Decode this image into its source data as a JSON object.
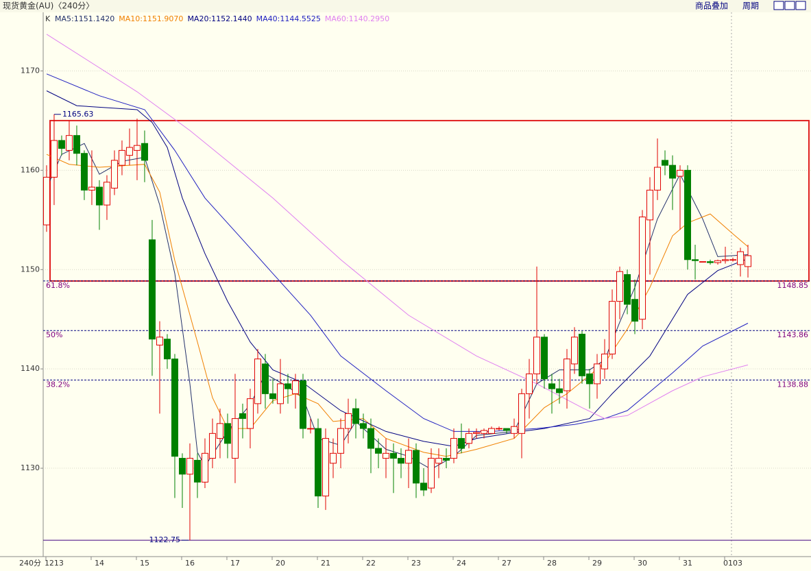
{
  "header": {
    "title": "现货黄金(AU)〈240分〉",
    "buttons": [
      "商品叠加",
      "周期"
    ]
  },
  "chart_data": {
    "type": "candlestick",
    "ohlc_label": "K",
    "period_label": "240分",
    "up_color": "#e00000",
    "down_color": "#008000",
    "xlim": [
      -0.45,
      101.36
    ],
    "ylim": [
      1121.1,
      1175.9
    ],
    "yticks": [
      1130,
      1140,
      1150,
      1160,
      1170
    ],
    "grid": true,
    "xticks": [
      {
        "value": 1,
        "label": "1213"
      },
      {
        "value": 7,
        "label": "14"
      },
      {
        "value": 13,
        "label": "15"
      },
      {
        "value": 19,
        "label": "16"
      },
      {
        "value": 25,
        "label": "17"
      },
      {
        "value": 31,
        "label": "20"
      },
      {
        "value": 37,
        "label": "21"
      },
      {
        "value": 43,
        "label": "22"
      },
      {
        "value": 49,
        "label": "23"
      },
      {
        "value": 55,
        "label": "24"
      },
      {
        "value": 61,
        "label": "27"
      },
      {
        "value": 67,
        "label": "28"
      },
      {
        "value": 73,
        "label": "29"
      },
      {
        "value": 79,
        "label": "30"
      },
      {
        "value": 85,
        "label": "31"
      },
      {
        "value": 91,
        "label": "0103"
      }
    ],
    "open": [
      1154.5,
      1159.3,
      1163,
      1162,
      1163.5,
      1161.7,
      1158,
      1158.3,
      1156.5,
      1158.2,
      1160.5,
      1161.5,
      1162,
      1162.7,
      1153,
      1142.4,
      1143,
      1141,
      1131,
      1129.4,
      1130.8,
      1128.6,
      1131,
      1133,
      1134.5,
      1131,
      1135.5,
      1134,
      1136.5,
      1140.5,
      1137.5,
      1136.5,
      1138.5,
      1137.5,
      1138.8,
      1134,
      1134,
      1127.2,
      1130.5,
      1131.5,
      1134,
      1136,
      1134.5,
      1134,
      1132,
      1131,
      1131.5,
      1131,
      1130.5,
      1131.8,
      1128.5,
      1128,
      1130.5,
      1131,
      1131,
      1133,
      1132.5,
      1133.5,
      1133.5,
      1133.5,
      1134,
      1134,
      1133.5,
      1133.5,
      1137.5,
      1139.5,
      1143.2,
      1138.5,
      1138,
      1137.8,
      1140.5,
      1143.5,
      1139.5,
      1138.5,
      1140,
      1141.5,
      1146.8,
      1149.5,
      1147,
      1145,
      1155,
      1158,
      1161,
      1160.5,
      1159.4,
      1160,
      1151,
      1150.8,
      1150.8,
      1150.7,
      1150.9,
      1151,
      1150.5,
      1150.3
    ],
    "high": [
      1160.5,
      1165.63,
      1163.5,
      1165,
      1164.5,
      1162,
      1162,
      1159,
      1159.5,
      1162,
      1163,
      1164.2,
      1165.2,
      1164,
      1155,
      1144.8,
      1143.5,
      1141.5,
      1131.5,
      1132.5,
      1131.5,
      1133,
      1135,
      1136,
      1135.5,
      1139.5,
      1136.5,
      1138,
      1142,
      1141.5,
      1139,
      1141,
      1139.5,
      1139.5,
      1139.5,
      1135,
      1135,
      1134,
      1133,
      1135,
      1137,
      1137,
      1135.5,
      1135,
      1133,
      1133,
      1132.5,
      1132,
      1133,
      1132.5,
      1130,
      1132,
      1132,
      1132,
      1134,
      1134.5,
      1134,
      1134,
      1134,
      1134.2,
      1134.2,
      1134,
      1135,
      1138,
      1141,
      1150.3,
      1143.5,
      1139.5,
      1139,
      1142,
      1144.2,
      1143.8,
      1140,
      1141.5,
      1143,
      1148,
      1150.3,
      1150,
      1149,
      1156,
      1159.3,
      1163.2,
      1162,
      1161.5,
      1160.5,
      1160.5,
      1152.5,
      1150.8,
      1151,
      1151,
      1152.3,
      1151.2,
      1152.2,
      1152.5
    ],
    "low": [
      1153.8,
      1156.5,
      1161.5,
      1161,
      1160.5,
      1157,
      1156.5,
      1154,
      1155,
      1157.5,
      1159.5,
      1160.5,
      1159,
      1158.8,
      1139.3,
      1135.5,
      1140,
      1127,
      1126,
      1122.75,
      1127,
      1128,
      1130,
      1131,
      1131,
      1128.5,
      1133,
      1132,
      1135.5,
      1136,
      1136.5,
      1135.5,
      1136.5,
      1136,
      1133,
      1133.5,
      1126,
      1125.8,
      1129,
      1130,
      1132.5,
      1133,
      1133,
      1129.5,
      1130,
      1129,
      1127.5,
      1129,
      1128,
      1127,
      1127.2,
      1127.5,
      1129,
      1130,
      1130.5,
      1131.5,
      1132,
      1133,
      1133,
      1133.5,
      1133.8,
      1133.5,
      1133,
      1131,
      1135,
      1138.5,
      1138,
      1135.5,
      1136.5,
      1136,
      1139.5,
      1138.5,
      1136,
      1137,
      1139,
      1141,
      1145,
      1145.5,
      1143.5,
      1144,
      1149.5,
      1157,
      1159.5,
      1156,
      1154,
      1150,
      1149,
      1150.8,
      1150.5,
      1150.5,
      1150.6,
      1150.8,
      1149.3,
      1149.2
    ],
    "close": [
      1159.3,
      1163,
      1162.2,
      1163.5,
      1161.7,
      1158,
      1158.3,
      1156.5,
      1158.8,
      1161,
      1162,
      1162.3,
      1162.5,
      1161,
      1143,
      1143.2,
      1141,
      1131.2,
      1129.4,
      1131,
      1128.6,
      1131.5,
      1133.5,
      1134.5,
      1132.5,
      1135,
      1135,
      1137,
      1141,
      1137.5,
      1137,
      1138.5,
      1138,
      1138.8,
      1134,
      1134,
      1127.2,
      1133,
      1131.5,
      1134,
      1135.5,
      1134.5,
      1134,
      1132,
      1131.5,
      1131.5,
      1131,
      1130.5,
      1131.8,
      1128.5,
      1127.8,
      1131,
      1131,
      1130.8,
      1133,
      1132,
      1133.5,
      1133.6,
      1133.8,
      1134,
      1134,
      1133.8,
      1134.2,
      1137.5,
      1139.5,
      1143.2,
      1139,
      1138,
      1137.6,
      1141,
      1143.2,
      1139.3,
      1138.5,
      1140.5,
      1141.5,
      1146.8,
      1149.8,
      1146.5,
      1144.8,
      1155.3,
      1158,
      1160.3,
      1160.5,
      1159.2,
      1160,
      1151,
      1150.9,
      1150.8,
      1150.7,
      1150.9,
      1151,
      1151,
      1151.8,
      1151.4
    ],
    "series": [
      {
        "name": "MA5:1151.1420",
        "color": "#22306a",
        "x": [
          0,
          2,
          5,
          7,
          10,
          13,
          15,
          17,
          19,
          20,
          21,
          24,
          27,
          29,
          32,
          34,
          36,
          39,
          41,
          45,
          48,
          51,
          54,
          57,
          62,
          65,
          68,
          72,
          74,
          76,
          78,
          81,
          84,
          87,
          89,
          93
        ],
        "values": [
          1158.2,
          1161.6,
          1162.7,
          1159.6,
          1160.9,
          1161.3,
          1156.5,
          1149.6,
          1138.5,
          1131.6,
          1130.2,
          1133.7,
          1136.4,
          1139.5,
          1138.2,
          1137.1,
          1133,
          1132.3,
          1134.7,
          1131.9,
          1131.2,
          1129.9,
          1131.2,
          1133.3,
          1133.7,
          1138.5,
          1139.9,
          1139.9,
          1140.9,
          1144.7,
          1148.2,
          1155.1,
          1159.6,
          1155.1,
          1151.3,
          1151.5
        ]
      },
      {
        "name": "MA10:1151.9070",
        "color": "#f08000",
        "x": [
          0,
          3,
          7,
          13,
          15,
          17,
          20,
          22,
          24,
          27,
          30,
          33,
          36,
          38,
          42,
          45,
          50,
          53,
          57,
          62,
          66,
          69,
          74,
          77,
          80,
          83,
          85,
          88,
          91,
          93
        ],
        "values": [
          1161.6,
          1160.6,
          1160.3,
          1160.6,
          1157.8,
          1150.9,
          1142.7,
          1137.1,
          1134,
          1134,
          1136.8,
          1137.5,
          1136.5,
          1134.7,
          1135,
          1133,
          1131.6,
          1131.2,
          1131.9,
          1133,
          1136.1,
          1137.5,
          1140.6,
          1144,
          1148.2,
          1153.4,
          1154.7,
          1155.6,
          1153.6,
          1152.3
        ]
      },
      {
        "name": "MA20:1152.1440",
        "color": "#000080",
        "x": [
          0,
          4,
          12,
          14,
          16,
          18,
          21,
          24,
          27,
          30,
          34,
          39,
          45,
          50,
          54,
          57,
          63,
          66,
          72,
          75,
          80,
          85,
          89,
          93
        ],
        "values": [
          1168,
          1166.5,
          1166.1,
          1164.8,
          1162.3,
          1157.2,
          1151.6,
          1146.8,
          1142.7,
          1139.9,
          1138.6,
          1135.8,
          1133.7,
          1132.7,
          1132.2,
          1133,
          1133.7,
          1134,
          1135,
          1137.5,
          1141.3,
          1147.5,
          1149.9,
          1151.1
        ]
      },
      {
        "name": "MA40:1144.5525",
        "color": "#2020c0",
        "x": [
          0,
          7,
          13,
          17,
          21,
          26,
          30,
          35,
          39,
          45,
          50,
          54,
          59,
          65,
          70,
          74,
          77,
          83,
          87,
          93
        ],
        "values": [
          1169.7,
          1167.5,
          1166.1,
          1162,
          1157.2,
          1153,
          1149.6,
          1145.4,
          1141.3,
          1137.8,
          1135,
          1133.7,
          1133.7,
          1134,
          1134.4,
          1135,
          1135.8,
          1139.6,
          1142.3,
          1144.6
        ]
      },
      {
        "name": "MA60:1140.2950",
        "color": "#e080f0",
        "x": [
          0,
          12,
          19,
          30,
          39,
          48,
          57,
          65,
          71,
          74,
          77,
          83,
          87,
          93
        ],
        "values": [
          1173.7,
          1167.9,
          1164,
          1157.2,
          1151,
          1145.4,
          1141.3,
          1138.5,
          1136.1,
          1135,
          1135.3,
          1137.8,
          1139.2,
          1140.4
        ]
      }
    ],
    "fib_levels": [
      {
        "label": "61.8%",
        "value": 1148.85
      },
      {
        "label": "50%",
        "value": 1143.86
      },
      {
        "label": "38.2%",
        "value": 1138.88
      }
    ],
    "fib_color": "#800080",
    "highlight": {
      "ylim": [
        1148.85,
        1165.0
      ],
      "color": "#e02020"
    },
    "extremes": [
      {
        "index": 1,
        "value": 1165.63
      },
      {
        "index": 19,
        "value": 1122.75
      }
    ]
  }
}
